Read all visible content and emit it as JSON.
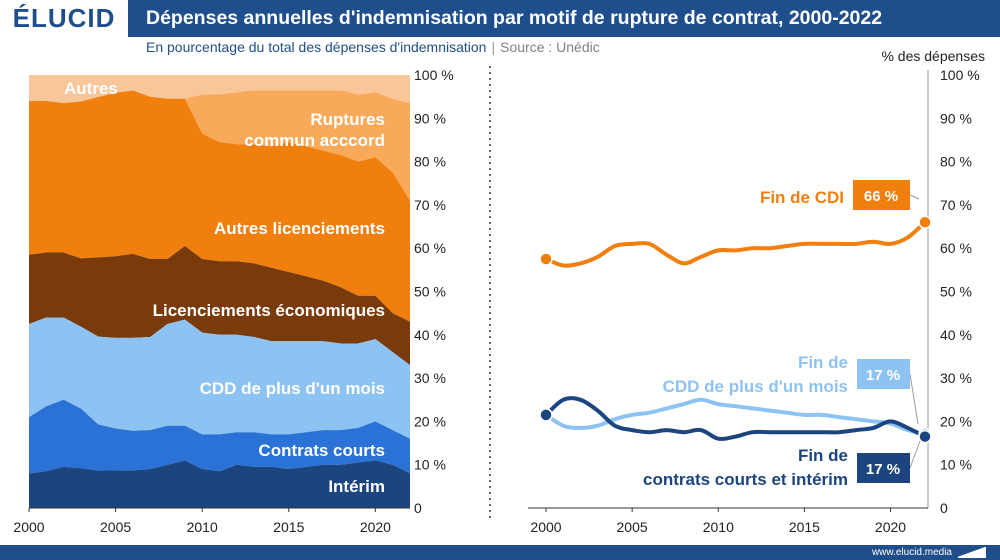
{
  "header": {
    "logo": "ÉLUCID",
    "title": "Dépenses annuelles d'indemnisation par motif de rupture de contrat, 2000-2022",
    "subtitle": "En pourcentage du total des dépenses d'indemnisation",
    "source": "Source : Unédic"
  },
  "footer": {
    "url": "www.elucid.media"
  },
  "colors": {
    "brand": "#1f4e8c",
    "interim": "#1c4580",
    "contrats_courts": "#2a72d6",
    "cdd": "#8dc3f2",
    "licenciements_eco": "#7a3b0c",
    "autres_licenciements": "#f07f0e",
    "ruptures": "#f8aa5a",
    "autres": "#f9c699"
  },
  "chart_data": [
    {
      "type": "area",
      "stacked": true,
      "x": [
        2000,
        2001,
        2002,
        2003,
        2004,
        2005,
        2006,
        2007,
        2008,
        2009,
        2010,
        2011,
        2012,
        2013,
        2014,
        2015,
        2016,
        2017,
        2018,
        2019,
        2020,
        2021,
        2022
      ],
      "x_ticks": [
        "2000",
        "2005",
        "2010",
        "2015",
        "2020"
      ],
      "y_ticks": [
        "0",
        "10 %",
        "20 %",
        "30 %",
        "40 %",
        "50 %",
        "60 %",
        "70 %",
        "80 %",
        "90 %",
        "100 %"
      ],
      "ylim": [
        0,
        100
      ],
      "series": [
        {
          "name": "Intérim",
          "label": "Intérim",
          "values": [
            8,
            8.5,
            9.5,
            9,
            8.5,
            8.5,
            8.5,
            9,
            10,
            11,
            9,
            8.5,
            10,
            9.5,
            9.5,
            9,
            9.5,
            10,
            10,
            10.5,
            11,
            10,
            8
          ]
        },
        {
          "name": "Contrats courts",
          "label": "Contrats courts",
          "values": [
            13,
            15,
            15.5,
            13.5,
            10.5,
            9.5,
            9,
            9,
            9,
            8,
            8,
            8.5,
            7.5,
            8,
            7.5,
            8,
            8,
            8,
            8,
            8,
            9,
            8,
            8
          ]
        },
        {
          "name": "CDD de plus d'un mois",
          "label": "CDD de plus d'un mois",
          "values": [
            21.5,
            20.5,
            19,
            18.5,
            20,
            20.5,
            21,
            21.5,
            23.5,
            24.5,
            23.5,
            23,
            22.5,
            22,
            21.5,
            21.5,
            21,
            20.5,
            20,
            19.5,
            19,
            18,
            17
          ]
        },
        {
          "name": "Licenciements économiques",
          "label": "Licenciements économiques",
          "values": [
            16,
            15,
            15,
            15.5,
            18,
            18.5,
            19,
            18,
            15,
            17,
            17,
            17,
            17,
            17,
            17,
            16,
            15,
            14,
            13,
            11,
            10,
            9,
            10
          ]
        },
        {
          "name": "Autres licenciements",
          "label": "Autres licenciements",
          "values": [
            35.5,
            35,
            34.5,
            35.5,
            36.5,
            37,
            37,
            37.5,
            37,
            34,
            29,
            27.5,
            27,
            27.5,
            28,
            30,
            30,
            30,
            30.5,
            31,
            32,
            32.5,
            28
          ]
        },
        {
          "name": "Ruptures commun acccord",
          "label": "Ruptures\ncommun acccord",
          "values": [
            0,
            0,
            0,
            0,
            0,
            0,
            0,
            0,
            0,
            0,
            9,
            11,
            12,
            12.5,
            13,
            12,
            13,
            14,
            15,
            15.5,
            15,
            17,
            22.5
          ]
        },
        {
          "name": "Autres",
          "label": "Autres",
          "values": [
            6,
            6,
            6.5,
            6,
            5,
            4,
            3.5,
            5,
            5.5,
            5.5,
            4.5,
            4.5,
            4,
            3.5,
            3.5,
            3.5,
            3.5,
            3.5,
            3.5,
            4.5,
            4,
            5.5,
            6.5
          ]
        }
      ]
    },
    {
      "type": "line",
      "ylabel": "% des dépenses",
      "x": [
        2000,
        2001,
        2002,
        2003,
        2004,
        2005,
        2006,
        2007,
        2008,
        2009,
        2010,
        2011,
        2012,
        2013,
        2014,
        2015,
        2016,
        2017,
        2018,
        2019,
        2020,
        2021,
        2022
      ],
      "x_ticks": [
        "2000",
        "2005",
        "2010",
        "2015",
        "2020"
      ],
      "y_ticks": [
        "0",
        "10 %",
        "20 %",
        "30 %",
        "40 %",
        "50 %",
        "60 %",
        "70 %",
        "80 %",
        "90 %",
        "100 %"
      ],
      "ylim": [
        0,
        100
      ],
      "series": [
        {
          "name": "Fin de CDI",
          "label": "Fin de CDI",
          "end_label": "66 %",
          "values": [
            57.5,
            56,
            56.5,
            58,
            60.5,
            61,
            61,
            58.5,
            56.5,
            58,
            59.5,
            59.5,
            60,
            60,
            60.5,
            61,
            61,
            61,
            61,
            61.5,
            61,
            62.5,
            66
          ]
        },
        {
          "name": "Fin de CDD de plus d'un mois",
          "label": "Fin de\nCDD de plus d'un mois",
          "end_label": "17 %",
          "values": [
            21.5,
            19,
            18.5,
            19,
            20.5,
            21.5,
            22,
            23,
            24,
            25,
            24,
            23.5,
            23,
            22.5,
            22,
            21.5,
            21.5,
            21,
            20.5,
            20,
            19.5,
            18,
            17
          ]
        },
        {
          "name": "Fin de contrats courts et intérim",
          "label": "Fin de\ncontrats courts et intérim",
          "end_label": "17 %",
          "values": [
            21.5,
            25,
            25,
            22.5,
            19,
            18,
            17.5,
            18,
            17.5,
            18,
            16,
            16.5,
            17.5,
            17.5,
            17.5,
            17.5,
            17.5,
            17.5,
            18,
            18.5,
            20,
            18.5,
            16.5
          ]
        }
      ]
    }
  ]
}
